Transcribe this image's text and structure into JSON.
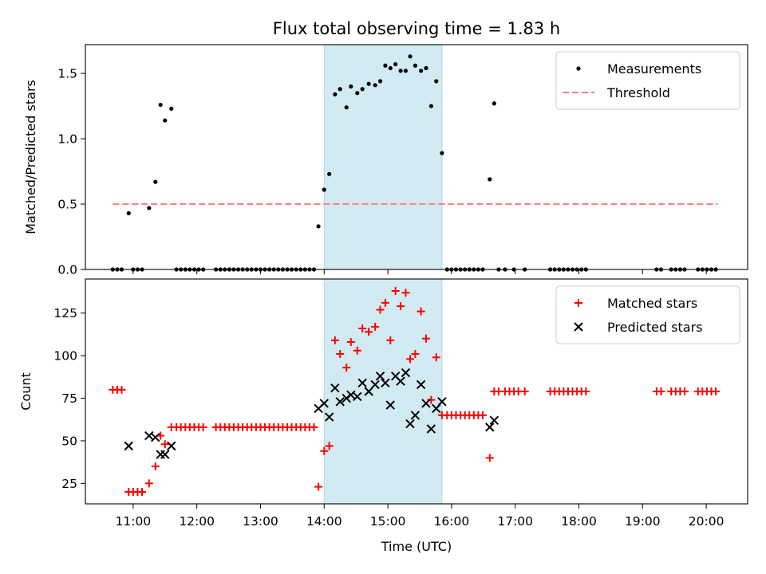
{
  "figure": {
    "title": "Flux total observing time = 1.83 h",
    "xlabel": "Time (UTC)",
    "highlight_span": {
      "start": 14.0,
      "end": 15.85,
      "color": "#add8e6"
    }
  },
  "chart_data": [
    {
      "type": "scatter",
      "ylabel": "Matched/Predicted stars",
      "xlim": [
        10.25,
        20.65
      ],
      "ylim": [
        0,
        1.72
      ],
      "yticks": [
        0.0,
        0.5,
        1.0,
        1.5
      ],
      "ytick_labels": [
        "0.0",
        "0.5",
        "1.0",
        "1.5"
      ],
      "legend_position": "top-right",
      "threshold": {
        "name": "Threshold",
        "y": 0.5,
        "x_range": [
          10.68,
          20.18
        ],
        "color": "#ff7f7f"
      },
      "series": [
        {
          "name": "Measurements",
          "marker": "dot",
          "color": "#000000",
          "points": [
            [
              10.68,
              0
            ],
            [
              10.75,
              0
            ],
            [
              10.82,
              0
            ],
            [
              10.93,
              0.43
            ],
            [
              11.0,
              0
            ],
            [
              11.07,
              0
            ],
            [
              11.14,
              0
            ],
            [
              11.25,
              0.47
            ],
            [
              11.35,
              0.67
            ],
            [
              11.43,
              1.26
            ],
            [
              11.5,
              1.14
            ],
            [
              11.6,
              1.23
            ],
            [
              11.68,
              0
            ],
            [
              11.75,
              0
            ],
            [
              11.82,
              0
            ],
            [
              11.89,
              0
            ],
            [
              11.96,
              0
            ],
            [
              12.03,
              0
            ],
            [
              12.1,
              0
            ],
            [
              12.3,
              0
            ],
            [
              12.37,
              0
            ],
            [
              12.44,
              0
            ],
            [
              12.51,
              0
            ],
            [
              12.58,
              0
            ],
            [
              12.65,
              0
            ],
            [
              12.72,
              0
            ],
            [
              12.79,
              0
            ],
            [
              12.86,
              0
            ],
            [
              12.93,
              0
            ],
            [
              13.0,
              0
            ],
            [
              13.07,
              0
            ],
            [
              13.14,
              0
            ],
            [
              13.21,
              0
            ],
            [
              13.28,
              0
            ],
            [
              13.35,
              0
            ],
            [
              13.42,
              0
            ],
            [
              13.49,
              0
            ],
            [
              13.56,
              0
            ],
            [
              13.63,
              0
            ],
            [
              13.7,
              0
            ],
            [
              13.77,
              0
            ],
            [
              13.84,
              0
            ],
            [
              13.91,
              0.33
            ],
            [
              14.0,
              0.61
            ],
            [
              14.08,
              0.73
            ],
            [
              14.17,
              1.34
            ],
            [
              14.25,
              1.38
            ],
            [
              14.35,
              1.24
            ],
            [
              14.42,
              1.4
            ],
            [
              14.52,
              1.35
            ],
            [
              14.6,
              1.38
            ],
            [
              14.7,
              1.42
            ],
            [
              14.8,
              1.41
            ],
            [
              14.88,
              1.44
            ],
            [
              14.96,
              1.56
            ],
            [
              15.04,
              1.54
            ],
            [
              15.12,
              1.57
            ],
            [
              15.2,
              1.52
            ],
            [
              15.28,
              1.52
            ],
            [
              15.35,
              1.63
            ],
            [
              15.43,
              1.56
            ],
            [
              15.52,
              1.52
            ],
            [
              15.6,
              1.54
            ],
            [
              15.68,
              1.25
            ],
            [
              15.76,
              1.44
            ],
            [
              15.85,
              0.89
            ],
            [
              15.93,
              0
            ],
            [
              16.0,
              0
            ],
            [
              16.07,
              0
            ],
            [
              16.14,
              0
            ],
            [
              16.21,
              0
            ],
            [
              16.28,
              0
            ],
            [
              16.35,
              0
            ],
            [
              16.42,
              0
            ],
            [
              16.49,
              0
            ],
            [
              16.6,
              0.69
            ],
            [
              16.67,
              1.27
            ],
            [
              16.74,
              0
            ],
            [
              16.84,
              0
            ],
            [
              16.98,
              0
            ],
            [
              17.15,
              0
            ],
            [
              17.55,
              0
            ],
            [
              17.62,
              0
            ],
            [
              17.69,
              0
            ],
            [
              17.76,
              0
            ],
            [
              17.83,
              0
            ],
            [
              17.9,
              0
            ],
            [
              17.97,
              0
            ],
            [
              18.04,
              0
            ],
            [
              18.11,
              0
            ],
            [
              19.22,
              0
            ],
            [
              19.29,
              0
            ],
            [
              19.45,
              0
            ],
            [
              19.52,
              0
            ],
            [
              19.59,
              0
            ],
            [
              19.66,
              0
            ],
            [
              19.87,
              0
            ],
            [
              19.94,
              0
            ],
            [
              20.01,
              0
            ],
            [
              20.08,
              0
            ],
            [
              20.15,
              0
            ]
          ]
        }
      ]
    },
    {
      "type": "scatter",
      "ylabel": "Count",
      "xlim": [
        10.25,
        20.65
      ],
      "ylim": [
        13,
        145
      ],
      "yticks": [
        25,
        50,
        75,
        100,
        125
      ],
      "ytick_labels": [
        "25",
        "50",
        "75",
        "100",
        "125"
      ],
      "xticks": [
        11,
        12,
        13,
        14,
        15,
        16,
        17,
        18,
        19,
        20
      ],
      "xtick_labels": [
        "11:00",
        "12:00",
        "13:00",
        "14:00",
        "15:00",
        "16:00",
        "17:00",
        "18:00",
        "19:00",
        "20:00"
      ],
      "legend_position": "top-right",
      "series": [
        {
          "name": "Matched stars",
          "marker": "plus",
          "color": "#ff0000",
          "points": [
            [
              10.68,
              80
            ],
            [
              10.75,
              80
            ],
            [
              10.82,
              80
            ],
            [
              10.93,
              20
            ],
            [
              11.0,
              20
            ],
            [
              11.07,
              20
            ],
            [
              11.14,
              20
            ],
            [
              11.25,
              25
            ],
            [
              11.35,
              35
            ],
            [
              11.43,
              53
            ],
            [
              11.5,
              48
            ],
            [
              11.6,
              58
            ],
            [
              11.68,
              58
            ],
            [
              11.75,
              58
            ],
            [
              11.82,
              58
            ],
            [
              11.89,
              58
            ],
            [
              11.96,
              58
            ],
            [
              12.03,
              58
            ],
            [
              12.1,
              58
            ],
            [
              12.3,
              58
            ],
            [
              12.37,
              58
            ],
            [
              12.44,
              58
            ],
            [
              12.51,
              58
            ],
            [
              12.58,
              58
            ],
            [
              12.65,
              58
            ],
            [
              12.72,
              58
            ],
            [
              12.79,
              58
            ],
            [
              12.86,
              58
            ],
            [
              12.93,
              58
            ],
            [
              13.0,
              58
            ],
            [
              13.07,
              58
            ],
            [
              13.14,
              58
            ],
            [
              13.21,
              58
            ],
            [
              13.28,
              58
            ],
            [
              13.35,
              58
            ],
            [
              13.42,
              58
            ],
            [
              13.49,
              58
            ],
            [
              13.56,
              58
            ],
            [
              13.63,
              58
            ],
            [
              13.7,
              58
            ],
            [
              13.77,
              58
            ],
            [
              13.84,
              58
            ],
            [
              13.91,
              23
            ],
            [
              14.0,
              44
            ],
            [
              14.08,
              47
            ],
            [
              14.17,
              109
            ],
            [
              14.25,
              101
            ],
            [
              14.35,
              93
            ],
            [
              14.42,
              108
            ],
            [
              14.52,
              103
            ],
            [
              14.6,
              116
            ],
            [
              14.7,
              114
            ],
            [
              14.8,
              117
            ],
            [
              14.88,
              127
            ],
            [
              14.96,
              131
            ],
            [
              15.04,
              109
            ],
            [
              15.12,
              138
            ],
            [
              15.2,
              129
            ],
            [
              15.28,
              137
            ],
            [
              15.35,
              98
            ],
            [
              15.43,
              101
            ],
            [
              15.52,
              126
            ],
            [
              15.6,
              110
            ],
            [
              15.68,
              74
            ],
            [
              15.76,
              99
            ],
            [
              15.85,
              65
            ],
            [
              15.93,
              65
            ],
            [
              16.0,
              65
            ],
            [
              16.07,
              65
            ],
            [
              16.14,
              65
            ],
            [
              16.21,
              65
            ],
            [
              16.28,
              65
            ],
            [
              16.35,
              65
            ],
            [
              16.42,
              65
            ],
            [
              16.49,
              65
            ],
            [
              16.6,
              40
            ],
            [
              16.67,
              79
            ],
            [
              16.74,
              79
            ],
            [
              16.84,
              79
            ],
            [
              16.91,
              79
            ],
            [
              16.98,
              79
            ],
            [
              17.05,
              79
            ],
            [
              17.15,
              79
            ],
            [
              17.55,
              79
            ],
            [
              17.62,
              79
            ],
            [
              17.69,
              79
            ],
            [
              17.76,
              79
            ],
            [
              17.83,
              79
            ],
            [
              17.9,
              79
            ],
            [
              17.97,
              79
            ],
            [
              18.04,
              79
            ],
            [
              18.11,
              79
            ],
            [
              19.22,
              79
            ],
            [
              19.29,
              79
            ],
            [
              19.45,
              79
            ],
            [
              19.52,
              79
            ],
            [
              19.59,
              79
            ],
            [
              19.66,
              79
            ],
            [
              19.87,
              79
            ],
            [
              19.94,
              79
            ],
            [
              20.01,
              79
            ],
            [
              20.08,
              79
            ],
            [
              20.15,
              79
            ]
          ]
        },
        {
          "name": "Predicted stars",
          "marker": "x",
          "color": "#000000",
          "points": [
            [
              10.93,
              47
            ],
            [
              11.25,
              53
            ],
            [
              11.35,
              52
            ],
            [
              11.43,
              42
            ],
            [
              11.5,
              42
            ],
            [
              11.6,
              47
            ],
            [
              13.91,
              69
            ],
            [
              14.0,
              72
            ],
            [
              14.08,
              64
            ],
            [
              14.17,
              81
            ],
            [
              14.25,
              73
            ],
            [
              14.35,
              75
            ],
            [
              14.42,
              77
            ],
            [
              14.52,
              76
            ],
            [
              14.6,
              84
            ],
            [
              14.7,
              79
            ],
            [
              14.8,
              83
            ],
            [
              14.88,
              88
            ],
            [
              14.96,
              84
            ],
            [
              15.04,
              71
            ],
            [
              15.12,
              88
            ],
            [
              15.2,
              85
            ],
            [
              15.28,
              90
            ],
            [
              15.35,
              60
            ],
            [
              15.43,
              65
            ],
            [
              15.52,
              83
            ],
            [
              15.6,
              72
            ],
            [
              15.68,
              57
            ],
            [
              15.76,
              69
            ],
            [
              15.85,
              73
            ],
            [
              16.6,
              58
            ],
            [
              16.67,
              62
            ]
          ]
        }
      ]
    }
  ]
}
